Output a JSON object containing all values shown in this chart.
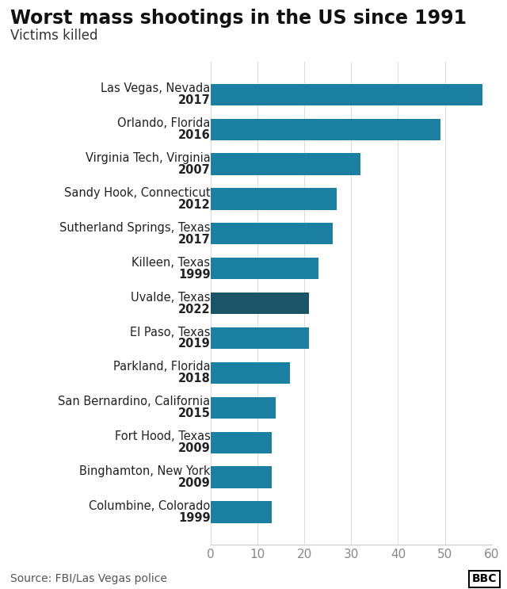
{
  "title": "Worst mass shootings in the US since 1991",
  "subtitle": "Victims killed",
  "source": "Source: FBI/Las Vegas police",
  "bbc_label": "BBC",
  "locations": [
    "Las Vegas, Nevada",
    "Orlando, Florida",
    "Virginia Tech, Virginia",
    "Sandy Hook, Connecticut",
    "Sutherland Springs, Texas",
    "Killeen, Texas",
    "Uvalde, Texas",
    "El Paso, Texas",
    "Parkland, Florida",
    "San Bernardino, California",
    "Fort Hood, Texas",
    "Binghamton, New York",
    "Columbine, Colorado"
  ],
  "years": [
    "2017",
    "2016",
    "2007",
    "2012",
    "2017",
    "1999",
    "2022",
    "2019",
    "2018",
    "2015",
    "2009",
    "2009",
    "1999"
  ],
  "values": [
    58,
    49,
    32,
    27,
    26,
    23,
    21,
    21,
    17,
    14,
    13,
    13,
    13
  ],
  "colors": [
    "#1a7fa0",
    "#1a7fa0",
    "#1a7fa0",
    "#1a7fa0",
    "#1a7fa0",
    "#1a7fa0",
    "#1a5466",
    "#1a7fa0",
    "#1a7fa0",
    "#1a7fa0",
    "#1a7fa0",
    "#1a7fa0",
    "#1a7fa0"
  ],
  "xlim": [
    0,
    60
  ],
  "xticks": [
    0,
    10,
    20,
    30,
    40,
    50,
    60
  ],
  "background_color": "#ffffff",
  "title_fontsize": 17,
  "subtitle_fontsize": 12,
  "label_fontsize": 10.5,
  "tick_fontsize": 11,
  "source_fontsize": 10
}
